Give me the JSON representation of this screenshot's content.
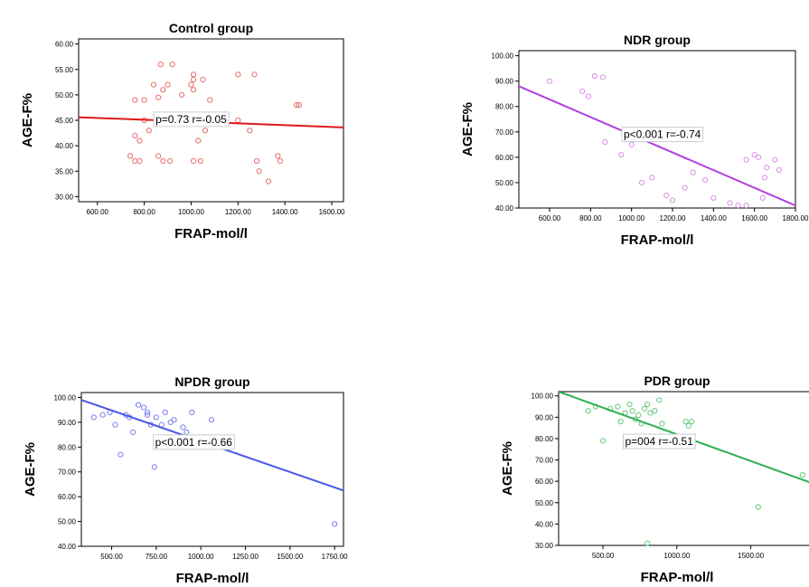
{
  "chart_data": [
    {
      "type": "scatter",
      "title": "Control group",
      "xlabel": "FRAP-mol/l",
      "ylabel": "AGE-F%",
      "xlim": [
        520,
        1650
      ],
      "ylim": [
        29,
        61
      ],
      "xticks": [
        600,
        800,
        1000,
        1200,
        1400,
        1600
      ],
      "xtick_labels": [
        "600.00",
        "800.00",
        "1000.00",
        "1200.00",
        "1400.00",
        "1600.00"
      ],
      "yticks": [
        30,
        35,
        40,
        45,
        50,
        55,
        60
      ],
      "ytick_labels": [
        "30.00",
        "35.00",
        "40.00",
        "45.00",
        "50.00",
        "55.00",
        "60.00"
      ],
      "annotation": "p=0.73   r=-0.05",
      "annotation_pos": [
        1000,
        45.2
      ],
      "color": "#e8706c",
      "line_color": "#e01818",
      "fit_line": [
        [
          520,
          45.6
        ],
        [
          1650,
          43.6
        ]
      ],
      "points": [
        [
          760,
          49
        ],
        [
          800,
          49
        ],
        [
          840,
          52
        ],
        [
          870,
          56
        ],
        [
          880,
          51
        ],
        [
          920,
          56
        ],
        [
          860,
          49.5
        ],
        [
          900,
          52
        ],
        [
          960,
          50
        ],
        [
          1010,
          54
        ],
        [
          1010,
          53
        ],
        [
          1000,
          52
        ],
        [
          1010,
          51
        ],
        [
          1050,
          53
        ],
        [
          1080,
          49
        ],
        [
          1200,
          54
        ],
        [
          1270,
          54
        ],
        [
          1450,
          48
        ],
        [
          1460,
          48
        ],
        [
          760,
          42
        ],
        [
          780,
          41
        ],
        [
          800,
          45
        ],
        [
          820,
          43
        ],
        [
          850,
          46
        ],
        [
          740,
          38
        ],
        [
          760,
          37
        ],
        [
          780,
          37
        ],
        [
          860,
          38
        ],
        [
          880,
          37
        ],
        [
          910,
          37
        ],
        [
          1010,
          37
        ],
        [
          1040,
          37
        ],
        [
          1030,
          41
        ],
        [
          1060,
          43
        ],
        [
          1200,
          45
        ],
        [
          1250,
          43
        ],
        [
          1280,
          37
        ],
        [
          1290,
          35
        ],
        [
          1330,
          33
        ],
        [
          1370,
          38
        ],
        [
          1380,
          37
        ],
        [
          1100,
          45
        ]
      ]
    },
    {
      "type": "scatter",
      "title": "NDR group",
      "xlabel": "FRAP-mol/l",
      "ylabel": "AGE-F%",
      "xlim": [
        450,
        1800
      ],
      "ylim": [
        40,
        102
      ],
      "xticks": [
        600,
        800,
        1000,
        1200,
        1400,
        1600,
        1800
      ],
      "xtick_labels": [
        "600.00",
        "800.00",
        "1000.00",
        "1200.00",
        "1400.00",
        "1600.00",
        "1800.00"
      ],
      "yticks": [
        40,
        50,
        60,
        70,
        80,
        90,
        100
      ],
      "ytick_labels": [
        "40.00",
        "50.00",
        "60.00",
        "70.00",
        "80.00",
        "90.00",
        "100.00"
      ],
      "annotation": "p<0.001   r=-0.74",
      "annotation_pos": [
        1150,
        69
      ],
      "color": "#dc8ee8",
      "line_color": "#b040e0",
      "fit_line": [
        [
          450,
          88
        ],
        [
          1800,
          41
        ]
      ],
      "points": [
        [
          600,
          90
        ],
        [
          760,
          86
        ],
        [
          790,
          84
        ],
        [
          820,
          92
        ],
        [
          860,
          91.5
        ],
        [
          870,
          66
        ],
        [
          950,
          61
        ],
        [
          1000,
          65
        ],
        [
          1050,
          50
        ],
        [
          1100,
          52
        ],
        [
          1170,
          45
        ],
        [
          1200,
          43
        ],
        [
          1260,
          48
        ],
        [
          1300,
          54
        ],
        [
          1360,
          51
        ],
        [
          1400,
          44
        ],
        [
          1480,
          42
        ],
        [
          1520,
          41
        ],
        [
          1560,
          59
        ],
        [
          1600,
          61
        ],
        [
          1620,
          60
        ],
        [
          1650,
          52
        ],
        [
          1660,
          56
        ],
        [
          1700,
          59
        ],
        [
          1720,
          55
        ],
        [
          1640,
          44
        ],
        [
          1560,
          41
        ]
      ]
    },
    {
      "type": "scatter",
      "title": "NPDR group",
      "xlabel": "FRAP-mol/l",
      "ylabel": "AGE-F%",
      "xlim": [
        330,
        1800
      ],
      "ylim": [
        40,
        102
      ],
      "xticks": [
        500,
        750,
        1000,
        1250,
        1500,
        1750
      ],
      "xtick_labels": [
        "500.00",
        "750.00",
        "1000.00",
        "1250.00",
        "1500.00",
        "1750.00"
      ],
      "yticks": [
        40,
        50,
        60,
        70,
        80,
        90,
        100
      ],
      "ytick_labels": [
        "40.00",
        "50.00",
        "60.00",
        "70.00",
        "80.00",
        "90.00",
        "100.00"
      ],
      "annotation": "p<0.001   r=-0.66",
      "annotation_pos": [
        960,
        82
      ],
      "color": "#7b7ff0",
      "line_color": "#4a56e8",
      "fit_line": [
        [
          330,
          99
        ],
        [
          1800,
          62.5
        ]
      ],
      "points": [
        [
          400,
          92
        ],
        [
          450,
          93
        ],
        [
          490,
          94
        ],
        [
          520,
          89
        ],
        [
          550,
          77
        ],
        [
          580,
          93
        ],
        [
          600,
          92
        ],
        [
          620,
          86
        ],
        [
          650,
          97
        ],
        [
          680,
          96
        ],
        [
          700,
          94
        ],
        [
          720,
          89
        ],
        [
          740,
          72
        ],
        [
          750,
          92
        ],
        [
          780,
          89
        ],
        [
          800,
          94
        ],
        [
          830,
          90
        ],
        [
          850,
          91
        ],
        [
          900,
          88
        ],
        [
          950,
          94
        ],
        [
          1020,
          84
        ],
        [
          1060,
          91
        ],
        [
          1100,
          82
        ],
        [
          1750,
          49
        ],
        [
          920,
          86
        ],
        [
          700,
          93
        ]
      ]
    },
    {
      "type": "scatter",
      "title": "PDR group",
      "xlabel": "FRAP-mol/l",
      "ylabel": "AGE-F%",
      "xlim": [
        200,
        1900
      ],
      "ylim": [
        30,
        102
      ],
      "xticks": [
        500,
        1000,
        1500
      ],
      "xtick_labels": [
        "500.00",
        "1000.00",
        "1500.00"
      ],
      "yticks": [
        30,
        40,
        50,
        60,
        70,
        80,
        90,
        100
      ],
      "ytick_labels": [
        "30.00",
        "40.00",
        "50.00",
        "60.00",
        "70.00",
        "80.00",
        "90.00",
        "100.00"
      ],
      "annotation": "p=004   r=-0.51",
      "annotation_pos": [
        880,
        78.7
      ],
      "color": "#66c878",
      "line_color": "#2eb050",
      "fit_line": [
        [
          200,
          102
        ],
        [
          1900,
          59.5
        ]
      ],
      "points": [
        [
          400,
          93
        ],
        [
          450,
          95
        ],
        [
          500,
          79
        ],
        [
          550,
          94
        ],
        [
          600,
          95
        ],
        [
          620,
          88
        ],
        [
          650,
          92
        ],
        [
          680,
          96
        ],
        [
          700,
          93
        ],
        [
          720,
          89
        ],
        [
          740,
          91
        ],
        [
          760,
          87
        ],
        [
          780,
          94
        ],
        [
          800,
          96
        ],
        [
          820,
          92
        ],
        [
          850,
          93
        ],
        [
          880,
          98
        ],
        [
          900,
          87
        ],
        [
          1060,
          88
        ],
        [
          1100,
          88
        ],
        [
          1080,
          86
        ],
        [
          800,
          31
        ],
        [
          1550,
          48
        ],
        [
          1850,
          63
        ]
      ]
    }
  ]
}
